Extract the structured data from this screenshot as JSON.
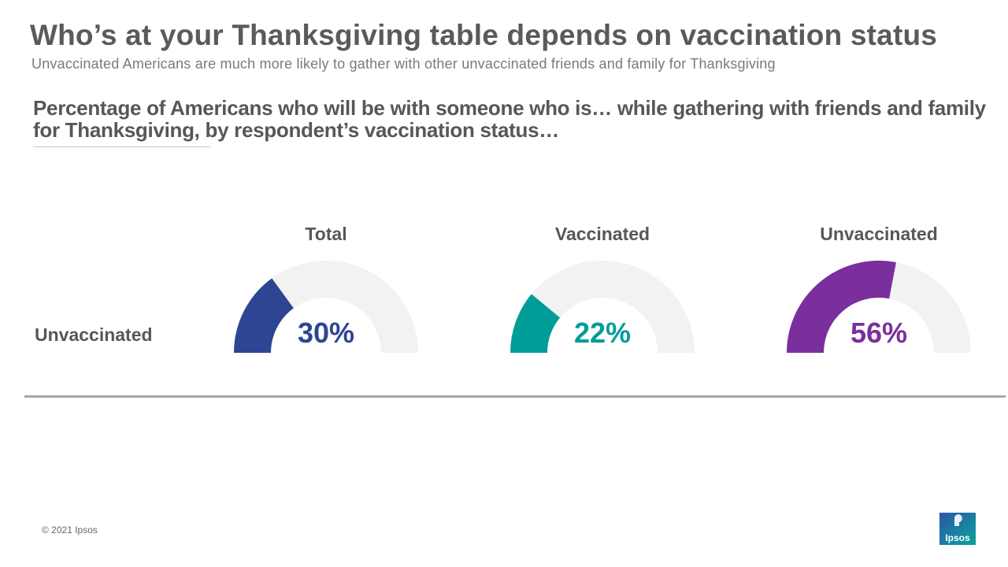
{
  "slide": {
    "title": "Who’s at your Thanksgiving table depends on vaccination status",
    "subtitle": "Unvaccinated Americans are much more likely to gather with other unvaccinated friends and family for Thanksgiving",
    "question": "Percentage of Americans who will be with someone who is… while gathering with friends and family for Thanksgiving, by respondent’s vaccination status…",
    "row_label": "Unvaccinated"
  },
  "chart_data": {
    "type": "gauge",
    "title": "Percentage of Americans who will be with someone who is… while gathering with friends and family for Thanksgiving, by respondent’s vaccination status…",
    "row": "Unvaccinated",
    "range": [
      0,
      100
    ],
    "categories": [
      "Total",
      "Vaccinated",
      "Unvaccinated"
    ],
    "values": [
      30,
      22,
      56
    ],
    "labels": [
      "30%",
      "22%",
      "56%"
    ],
    "colors": [
      "#2e4593",
      "#009d98",
      "#7b2e9e"
    ],
    "track_color": "#f2f2f2"
  },
  "footer": {
    "copyright": "© 2021 Ipsos"
  },
  "logo": {
    "text": "Ipsos",
    "color_top": "#2b57a8",
    "color_bottom": "#0aa39a"
  }
}
